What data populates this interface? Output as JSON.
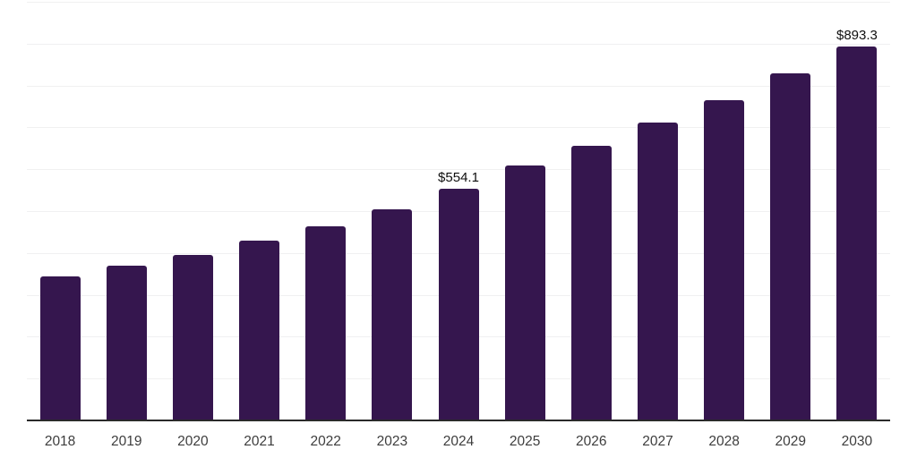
{
  "chart_data": {
    "type": "bar",
    "title": "",
    "xlabel": "",
    "ylabel": "",
    "categories": [
      "2018",
      "2019",
      "2020",
      "2021",
      "2022",
      "2023",
      "2024",
      "2025",
      "2026",
      "2027",
      "2028",
      "2029",
      "2030"
    ],
    "values": [
      343,
      369,
      396,
      430,
      464,
      504,
      554.1,
      610,
      657,
      712,
      765,
      828,
      893.3
    ],
    "point_labels": [
      null,
      null,
      null,
      null,
      null,
      null,
      "$554.1",
      null,
      null,
      null,
      null,
      null,
      "$893.3"
    ],
    "ylim": [
      0,
      1000
    ],
    "grid_step": 100,
    "grid": "horizontal-only",
    "legend": "none",
    "y_axis_tick_labels": "none"
  },
  "colors": {
    "bar": "#35164e",
    "gridline": "#f0f0f1",
    "axis_line": "#2a2a2a",
    "tick_label": "#3d3d3d",
    "data_label": "#0f0f0f",
    "background": "#ffffff"
  }
}
